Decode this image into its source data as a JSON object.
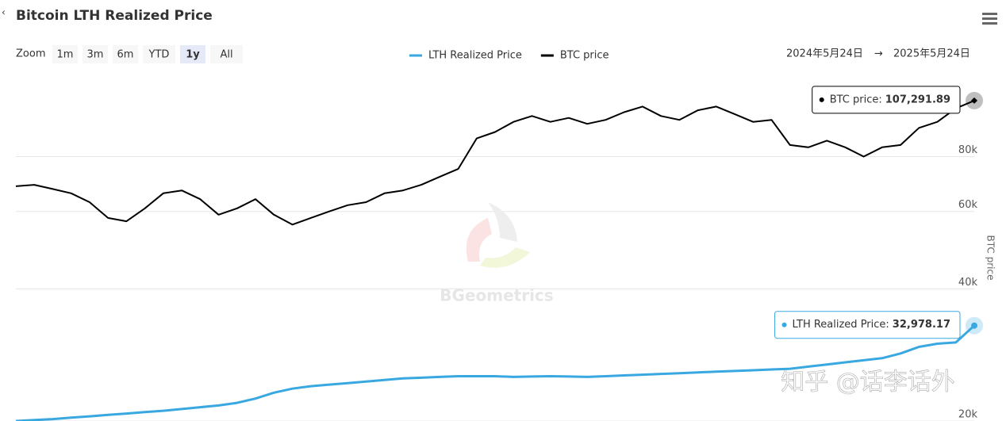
{
  "chart_data": {
    "type": "line",
    "title": "Bitcoin LTH Realized Price",
    "zoom_label": "Zoom",
    "zoom_buttons": [
      "1m",
      "3m",
      "6m",
      "YTD",
      "1y",
      "All"
    ],
    "zoom_selected": "1y",
    "range_from": "2024年5月24日",
    "range_arrow": "→",
    "range_to": "2025年5月24日",
    "y_label": "BTC price",
    "watermark": "BGeometrics",
    "credit": "知乎 @话李话外",
    "log_scale": true,
    "grid": true,
    "legend_position": "top",
    "ylim": [
      20000,
      120000
    ],
    "yticks": [
      {
        "value": 20000,
        "label": "20k"
      },
      {
        "value": 40000,
        "label": "40k"
      },
      {
        "value": 60000,
        "label": "60k"
      },
      {
        "value": 80000,
        "label": "80k"
      }
    ],
    "series": [
      {
        "name": "BTC price",
        "color": "#000000",
        "tooltip": "BTC price:",
        "values": [
          68500,
          69000,
          67500,
          66000,
          63000,
          58000,
          57000,
          61000,
          66000,
          67000,
          64000,
          59000,
          61000,
          64000,
          59000,
          56000,
          58000,
          60000,
          62000,
          63000,
          66000,
          67000,
          69000,
          72000,
          75000,
          88000,
          91000,
          96000,
          99000,
          96000,
          98000,
          95000,
          97000,
          101000,
          104000,
          99000,
          97000,
          102000,
          104000,
          100000,
          96000,
          97000,
          85000,
          84000,
          87000,
          84000,
          80000,
          84000,
          85000,
          93000,
          96000,
          103000,
          107291.89
        ],
        "value_labels": [
          null,
          null,
          null,
          null,
          null,
          null,
          null,
          null,
          null,
          null,
          null,
          null,
          null,
          null,
          null,
          null,
          null,
          null,
          null,
          null,
          null,
          null,
          null,
          null,
          null,
          null,
          null,
          null,
          null,
          null,
          null,
          null,
          null,
          null,
          null,
          null,
          null,
          null,
          null,
          null,
          null,
          null,
          null,
          null,
          null,
          null,
          null,
          null,
          null,
          null,
          null,
          null,
          "107,291.89"
        ]
      },
      {
        "name": "LTH Realized Price",
        "color": "#3aa8e0",
        "tooltip": "LTH Realized Price:",
        "values": [
          20000,
          20100,
          20200,
          20350,
          20500,
          20650,
          20800,
          20950,
          21100,
          21300,
          21500,
          21700,
          22000,
          22500,
          23200,
          23700,
          24000,
          24200,
          24400,
          24600,
          24800,
          25000,
          25100,
          25200,
          25300,
          25300,
          25300,
          25200,
          25250,
          25300,
          25250,
          25200,
          25300,
          25400,
          25500,
          25600,
          25700,
          25800,
          25900,
          26000,
          26100,
          26200,
          26300,
          26600,
          26900,
          27200,
          27500,
          27800,
          28500,
          29500,
          30000,
          30200,
          32978.17
        ],
        "value_labels": [
          null,
          null,
          null,
          null,
          null,
          null,
          null,
          null,
          null,
          null,
          null,
          null,
          null,
          null,
          null,
          null,
          null,
          null,
          null,
          null,
          null,
          null,
          null,
          null,
          null,
          null,
          null,
          null,
          null,
          null,
          null,
          null,
          null,
          null,
          null,
          null,
          null,
          null,
          null,
          null,
          null,
          null,
          null,
          null,
          null,
          null,
          null,
          null,
          null,
          null,
          null,
          null,
          "32,978.17"
        ]
      }
    ]
  }
}
